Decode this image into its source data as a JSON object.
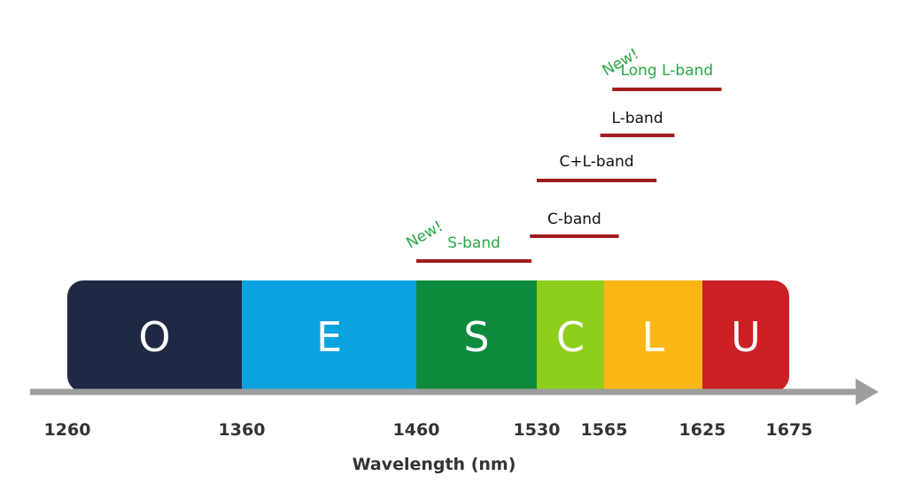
{
  "bands": [
    {
      "letter": "O",
      "start": 1260,
      "end": 1360,
      "color": "#1f2944"
    },
    {
      "letter": "E",
      "start": 1360,
      "end": 1460,
      "color": "#0ba3df"
    },
    {
      "letter": "S",
      "start": 1460,
      "end": 1530,
      "color": "#0e8a3e"
    },
    {
      "letter": "C",
      "start": 1530,
      "end": 1565,
      "color": "#8fcf1c"
    },
    {
      "letter": "L",
      "start": 1565,
      "end": 1625,
      "color": "#fcb717"
    },
    {
      "letter": "U",
      "start": 1625,
      "end": 1675,
      "color": "#cc1f26"
    }
  ],
  "ticks": [
    "1260",
    "1360",
    "1460",
    "1530",
    "1565",
    "1625",
    "1675"
  ],
  "axis_title": "Wavelength (nm)",
  "operating_bands": [
    {
      "label": "S-band",
      "new": true,
      "new_tag": "New!",
      "start": 1460,
      "end": 1527
    },
    {
      "label": "C-band",
      "start": 1526,
      "end": 1574
    },
    {
      "label": "C+L-band",
      "start": 1530,
      "end": 1597
    },
    {
      "label": "L-band",
      "start": 1563,
      "end": 1608
    },
    {
      "label": "Long L-band",
      "new": true,
      "new_tag": "New!",
      "start": 1570,
      "end": 1636
    }
  ],
  "colors": {
    "range_bar": "#a01b1e",
    "new_text": "#27a844",
    "axis_arrow": "#9e9e9e",
    "text": "#333333"
  }
}
